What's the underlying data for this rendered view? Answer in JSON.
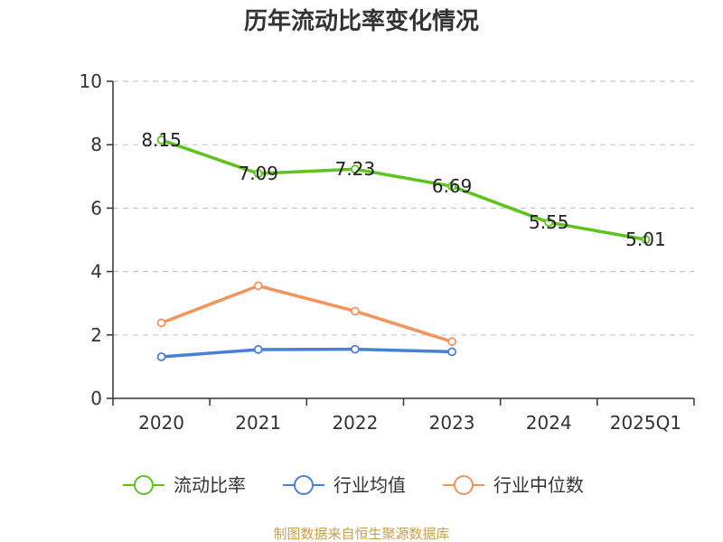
{
  "chart_data": {
    "type": "line",
    "title": "历年流动比率变化情况",
    "categories": [
      "2020",
      "2021",
      "2022",
      "2023",
      "2024",
      "2025Q1"
    ],
    "ylim": [
      0,
      10
    ],
    "yticks": [
      "0",
      "2",
      "4",
      "6",
      "8",
      "10"
    ],
    "grid": true,
    "legend_placement": "bottom",
    "series": [
      {
        "name": "流动比率",
        "color": "#5cc41d",
        "values": [
          8.15,
          7.09,
          7.23,
          6.69,
          5.55,
          5.01
        ],
        "labels": [
          "8.15",
          "7.09",
          "7.23",
          "6.69",
          "5.55",
          "5.01"
        ],
        "show_labels": true
      },
      {
        "name": "行业均值",
        "color": "#4a7fd6",
        "values": [
          1.31,
          1.54,
          1.55,
          1.47,
          null,
          null
        ],
        "show_labels": false
      },
      {
        "name": "行业中位数",
        "color": "#f4935c",
        "values": [
          2.38,
          3.55,
          2.75,
          1.79,
          null,
          null
        ],
        "show_labels": false
      }
    ],
    "source": "制图数据来自恒生聚源数据库"
  }
}
